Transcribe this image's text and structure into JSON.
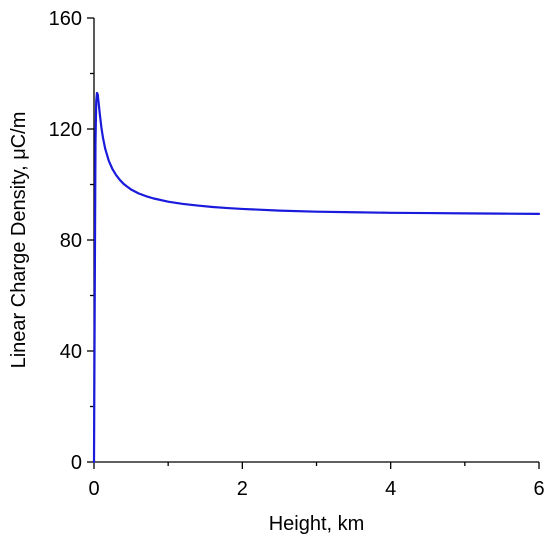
{
  "chart_data": {
    "type": "line",
    "title": "",
    "xlabel": "Height, km",
    "ylabel": "Linear Charge Density, μC/m",
    "xlim": [
      0,
      6
    ],
    "ylim": [
      0,
      160
    ],
    "x_ticks": [
      0,
      2,
      4,
      6
    ],
    "y_ticks": [
      0,
      40,
      80,
      120,
      160
    ],
    "x_tick_labels": [
      "0",
      "2",
      "4",
      "6"
    ],
    "y_tick_labels": [
      "0",
      "40",
      "80",
      "120",
      "160"
    ],
    "grid": false,
    "legend": "none",
    "series": [
      {
        "color": "#1a1adc",
        "x": [
          0,
          0.01,
          0.02,
          0.03,
          0.04,
          0.05,
          0.06,
          0.08,
          0.1,
          0.12,
          0.15,
          0.2,
          0.25,
          0.3,
          0.35,
          0.4,
          0.5,
          0.6,
          0.7,
          0.8,
          1.0,
          1.2,
          1.4,
          1.6,
          1.8,
          2.0,
          2.5,
          3.0,
          3.5,
          4.0,
          4.5,
          5.0,
          5.5,
          6.0
        ],
        "y": [
          0,
          60,
          115,
          130,
          133,
          132.5,
          130,
          125,
          120.5,
          117,
          113,
          108.5,
          105.5,
          103.3,
          101.6,
          100.2,
          98.2,
          96.8,
          95.8,
          95.0,
          93.8,
          93.0,
          92.4,
          91.9,
          91.5,
          91.2,
          90.6,
          90.2,
          90.0,
          89.8,
          89.7,
          89.6,
          89.5,
          89.4
        ]
      }
    ]
  }
}
